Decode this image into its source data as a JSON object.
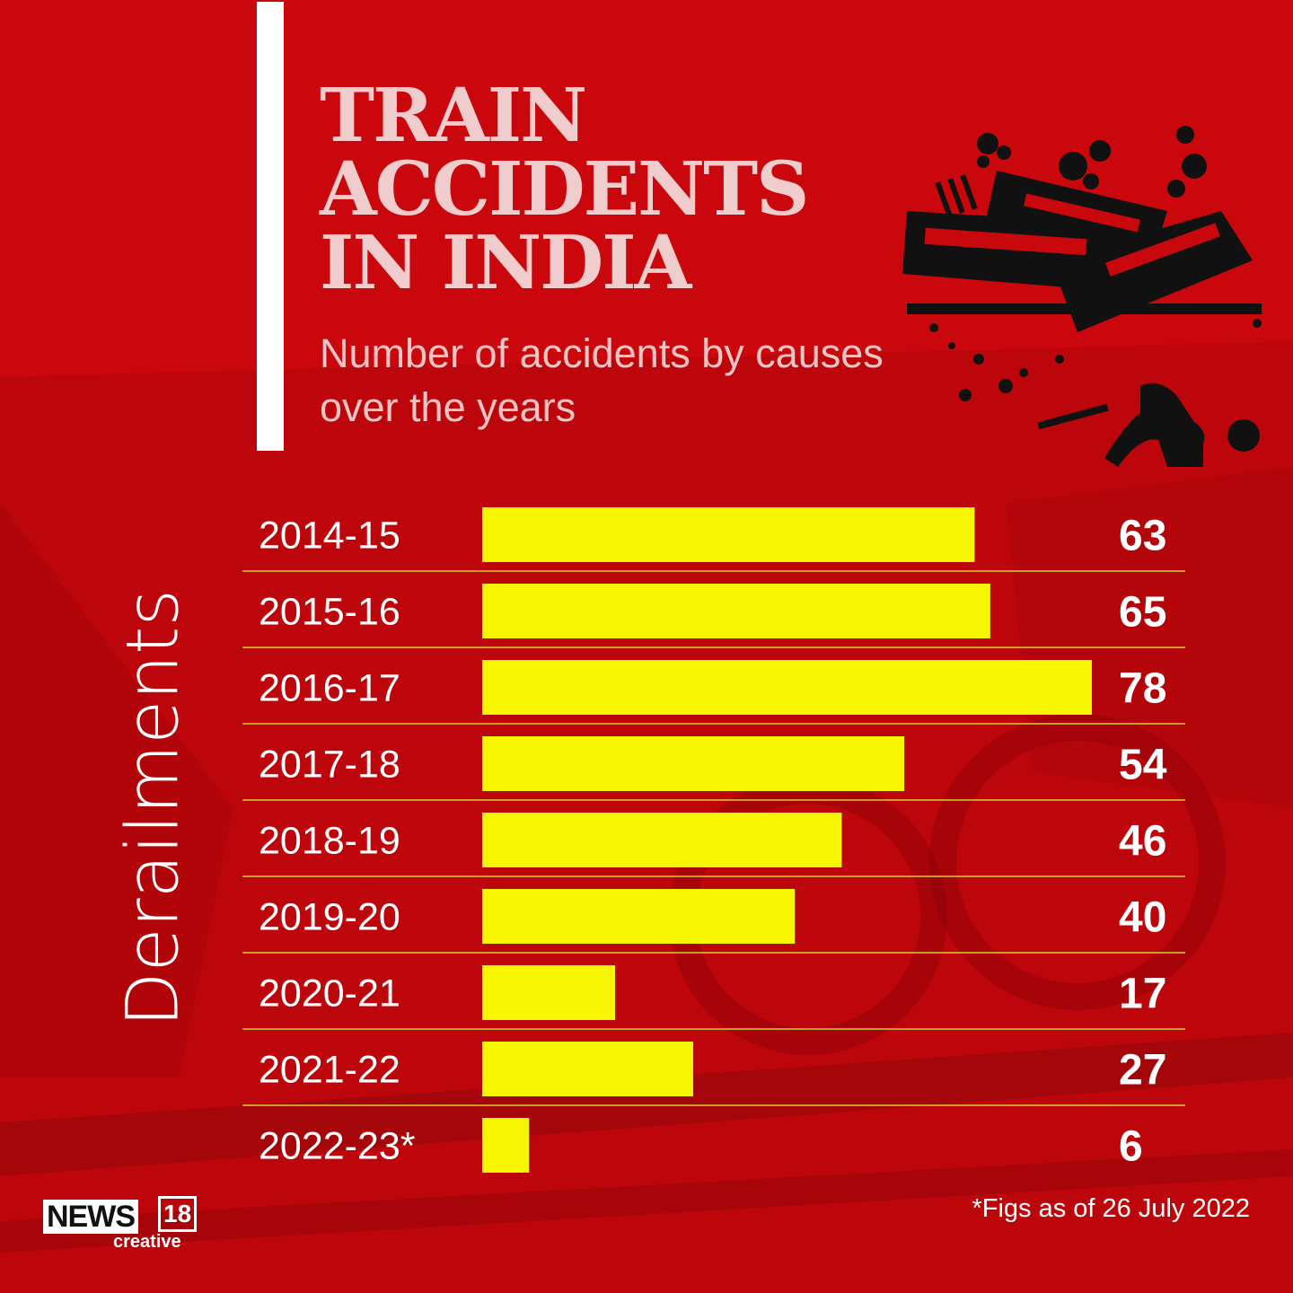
{
  "header": {
    "title": "TRAIN ACCIDENTS IN INDIA",
    "subtitle": "Number of accidents by causes over the years"
  },
  "side_label": "Derailments",
  "footnote": "*Figs as of 26 July 2022",
  "logo": {
    "name": "NEWS",
    "number": "18",
    "tagline": "creative"
  },
  "colors": {
    "background": "#c8080d",
    "bar": "#f6f503",
    "divider": "#d9cf2a",
    "text": "#ffffff",
    "title": "#f1cccc"
  },
  "icons": [
    "train-crash-icon"
  ],
  "chart_data": {
    "type": "bar",
    "orientation": "horizontal",
    "title": "TRAIN ACCIDENTS IN INDIA",
    "subtitle": "Number of accidents by causes over the years",
    "ylabel": "Derailments",
    "categories": [
      "2014-15",
      "2015-16",
      "2016-17",
      "2017-18",
      "2018-19",
      "2019-20",
      "2020-21",
      "2021-22",
      "2022-23*"
    ],
    "values": [
      63,
      65,
      78,
      54,
      46,
      40,
      17,
      27,
      6
    ],
    "value_labels": [
      "63",
      "65",
      "78",
      "54",
      "46",
      "40",
      "17",
      "27",
      "6"
    ],
    "xlim": [
      0,
      78
    ],
    "grid": false,
    "legend": "none"
  }
}
